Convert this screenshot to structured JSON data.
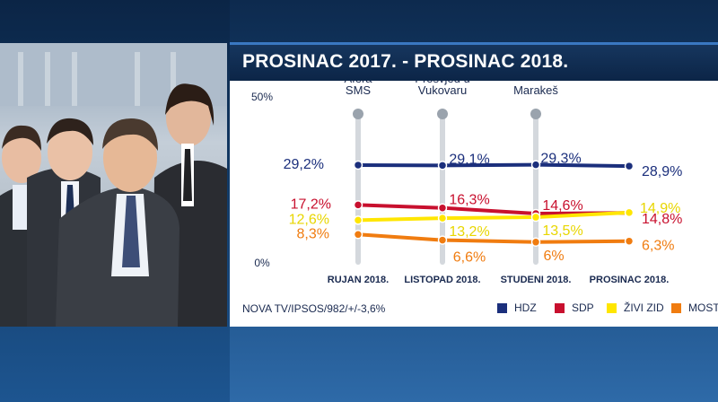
{
  "title": "PROSINAC 2017. - PROSINAC 2018.",
  "source": "NOVA TV/IPSOS/982/+/-3,6%",
  "chart_data": {
    "type": "line",
    "categories": [
      "RUJAN 2018.",
      "LISTOPAD 2018.",
      "STUDENI 2018.",
      "PROSINAC 2018."
    ],
    "ylim": [
      0,
      50
    ],
    "y_tick_labels": [
      "50%",
      "0%"
    ],
    "grid": false,
    "legend_position": "bottom-right",
    "series": [
      {
        "name": "HDZ",
        "color": "#1b2f7c",
        "values": [
          29.2,
          29.1,
          29.3,
          28.9
        ],
        "labels": [
          "29,2%",
          "29,1%",
          "29,3%",
          "28,9%"
        ]
      },
      {
        "name": "SDP",
        "color": "#c8102e",
        "values": [
          17.2,
          16.3,
          14.6,
          14.8
        ],
        "labels": [
          "17,2%",
          "16,3%",
          "14,6%",
          "14,8%"
        ]
      },
      {
        "name": "ŽIVI ZID",
        "color": "#ffe600",
        "values": [
          12.6,
          13.2,
          13.5,
          14.9
        ],
        "labels": [
          "12,6%",
          "13,2%",
          "13,5%",
          "14,9%"
        ]
      },
      {
        "name": "MOST",
        "color": "#f07c10",
        "values": [
          8.3,
          6.6,
          6.0,
          6.3
        ],
        "labels": [
          "8,3%",
          "6,6%",
          "6%",
          "6,3%"
        ]
      }
    ],
    "events": [
      {
        "at": "RUJAN 2018.",
        "label_lines": [
          "Afera",
          "SMS"
        ]
      },
      {
        "at": "LISTOPAD 2018.",
        "label_lines": [
          "Prosvjed u",
          "Vukovaru"
        ]
      },
      {
        "at": "STUDENI 2018.",
        "label_lines": [
          "Marakeš"
        ]
      }
    ]
  }
}
